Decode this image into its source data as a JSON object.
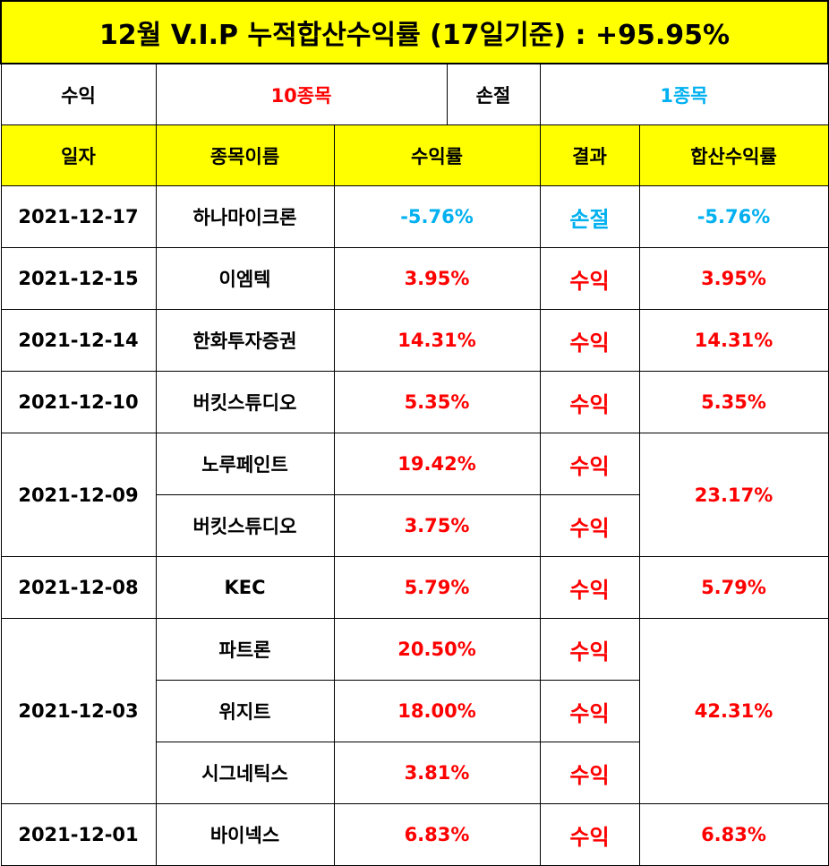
{
  "title": "12월 V.I.P 누적합산수익률 (17일기준) : +95.95%",
  "summary": {
    "profit_label": "수익",
    "profit_value": "10종목",
    "loss_label": "손절",
    "loss_value": "1종목"
  },
  "headers": {
    "date": "일자",
    "name": "종목이름",
    "rate": "수익률",
    "result": "결과",
    "total": "합산수익률"
  },
  "rows": [
    {
      "date": "2021-12-17",
      "name": "하나마이크론",
      "rate": "-5.76%",
      "result": "손절",
      "total": "-5.76%",
      "tone": "blue"
    },
    {
      "date": "2021-12-15",
      "name": "이엠텍",
      "rate": "3.95%",
      "result": "수익",
      "total": "3.95%",
      "tone": "red"
    },
    {
      "date": "2021-12-14",
      "name": "한화투자증권",
      "rate": "14.31%",
      "result": "수익",
      "total": "14.31%",
      "tone": "red"
    },
    {
      "date": "2021-12-10",
      "name": "버킷스튜디오",
      "rate": "5.35%",
      "result": "수익",
      "total": "5.35%",
      "tone": "red"
    },
    {
      "date": "2021-12-09",
      "name": "노루페인트",
      "rate": "19.42%",
      "result": "수익",
      "total": "23.17%",
      "tone": "red"
    },
    {
      "date": "2021-12-09",
      "name": "버킷스튜디오",
      "rate": "3.75%",
      "result": "수익",
      "total": "23.17%",
      "tone": "red"
    },
    {
      "date": "2021-12-08",
      "name": "KEC",
      "rate": "5.79%",
      "result": "수익",
      "total": "5.79%",
      "tone": "red"
    },
    {
      "date": "2021-12-03",
      "name": "파트론",
      "rate": "20.50%",
      "result": "수익",
      "total": "42.31%",
      "tone": "red"
    },
    {
      "date": "2021-12-03",
      "name": "위지트",
      "rate": "18.00%",
      "result": "수익",
      "total": "42.31%",
      "tone": "red"
    },
    {
      "date": "2021-12-03",
      "name": "시그네틱스",
      "rate": "3.81%",
      "result": "수익",
      "total": "42.31%",
      "tone": "red"
    },
    {
      "date": "2021-12-01",
      "name": "바이넥스",
      "rate": "6.83%",
      "result": "수익",
      "total": "6.83%",
      "tone": "red"
    }
  ],
  "colors": {
    "header_bg": "#ffff00",
    "profit": "#ff0000",
    "loss": "#00b0f0",
    "border": "#000000"
  }
}
